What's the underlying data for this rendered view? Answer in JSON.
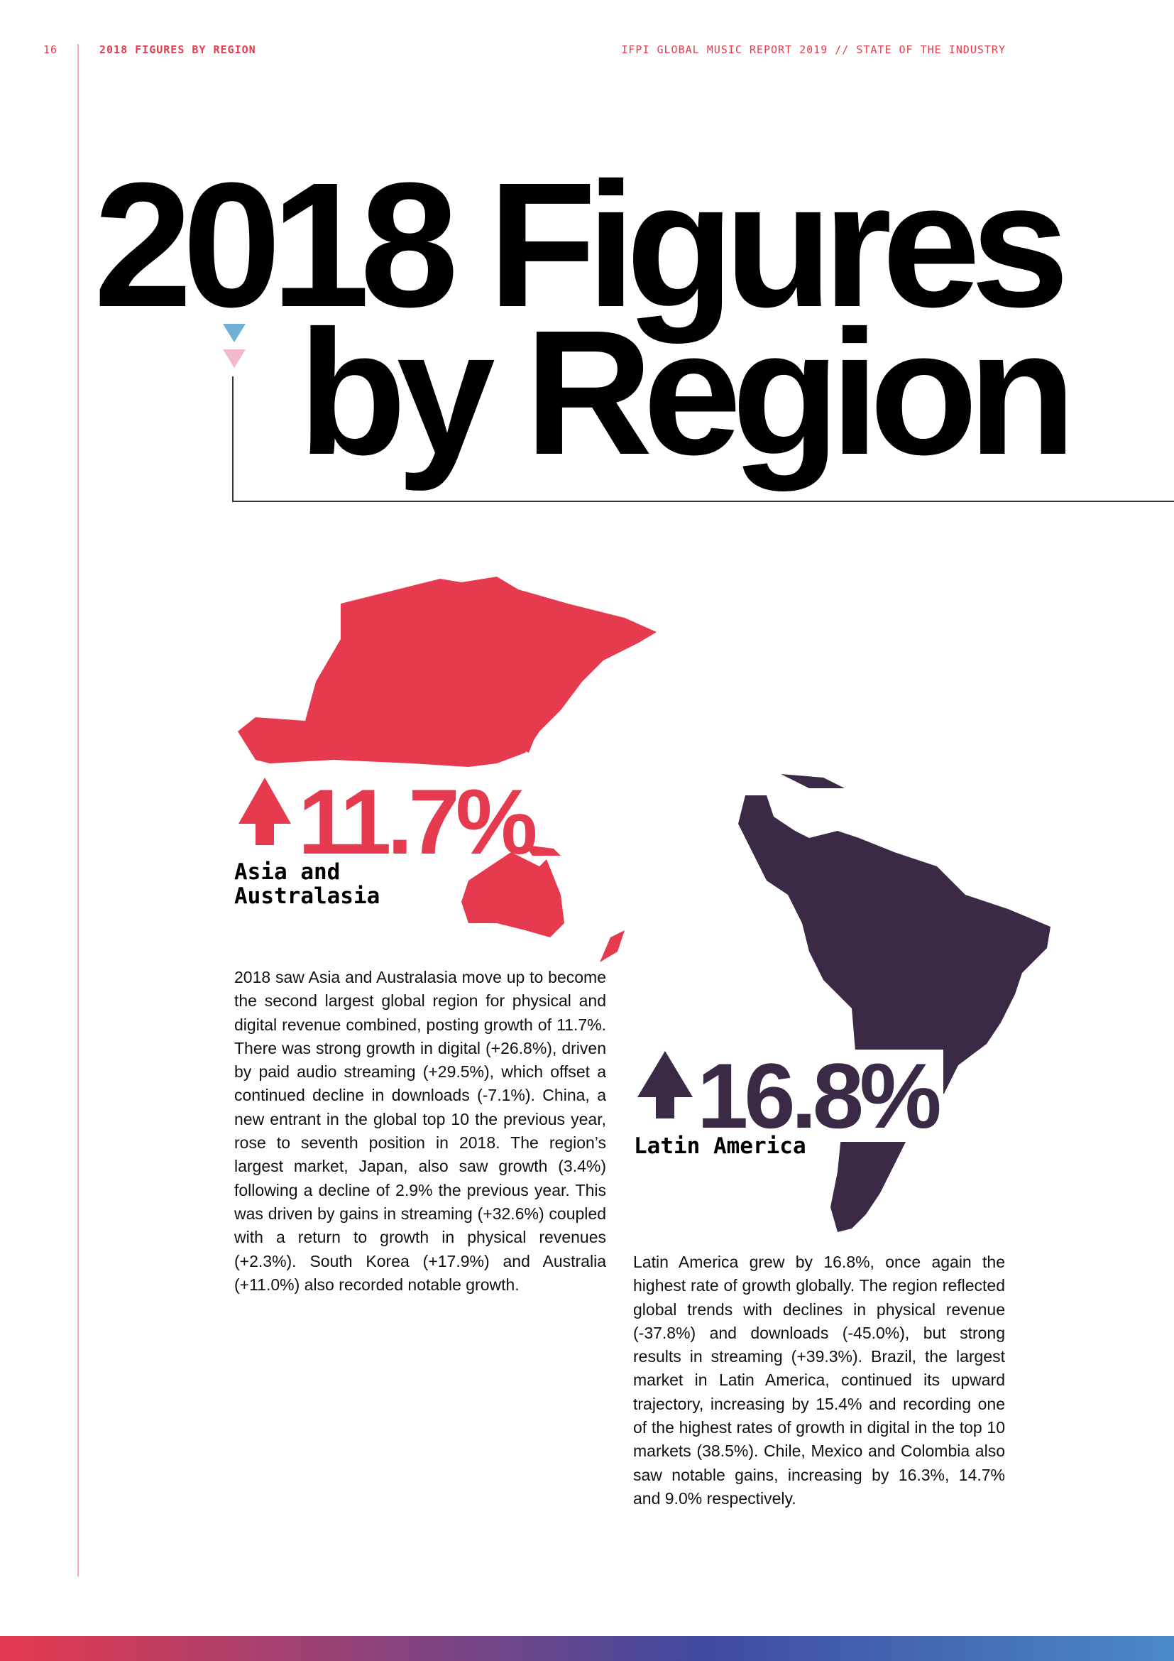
{
  "header": {
    "page_number": "16",
    "section": "2018 FIGURES BY REGION",
    "publication": "IFPI GLOBAL MUSIC REPORT 2019 // STATE OF THE INDUSTRY"
  },
  "title": {
    "lines": [
      "2018 Figures",
      "by Region"
    ]
  },
  "regions": [
    {
      "growth": "11.7%",
      "name": "Asia and Australasia",
      "body": "2018 saw Asia and Australasia move up to become the second largest global region for physical and digital revenue combined, posting growth of 11.7%. There was strong growth in digital (+26.8%), driven by paid audio streaming (+29.5%), which offset a continued decline in downloads (-7.1%). China, a new entrant in the global top 10 the previous year, rose to seventh position in 2018. The region’s largest market, Japan, also saw growth (3.4%) following a decline of 2.9% the previous year. This was driven by gains in streaming (+32.6%) coupled with a return to growth in physical revenues (+2.3%). South Korea (+17.9%) and Australia (+11.0%) also recorded notable growth."
    },
    {
      "growth": "16.8%",
      "name": "Latin America",
      "body": "Latin America grew by 16.8%, once again the highest rate of growth globally. The region reflected global trends with declines in physical revenue (-37.8%) and downloads (-45.0%), but strong results in streaming (+39.3%). Brazil, the largest market in Latin America, continued its upward trajectory, increasing by 15.4% and recording one of the highest rates of growth in digital in the top 10 markets (38.5%). Chile, Mexico and Colombia also saw notable gains, increasing by 16.3%, 14.7% and 9.0% respectively."
    }
  ]
}
